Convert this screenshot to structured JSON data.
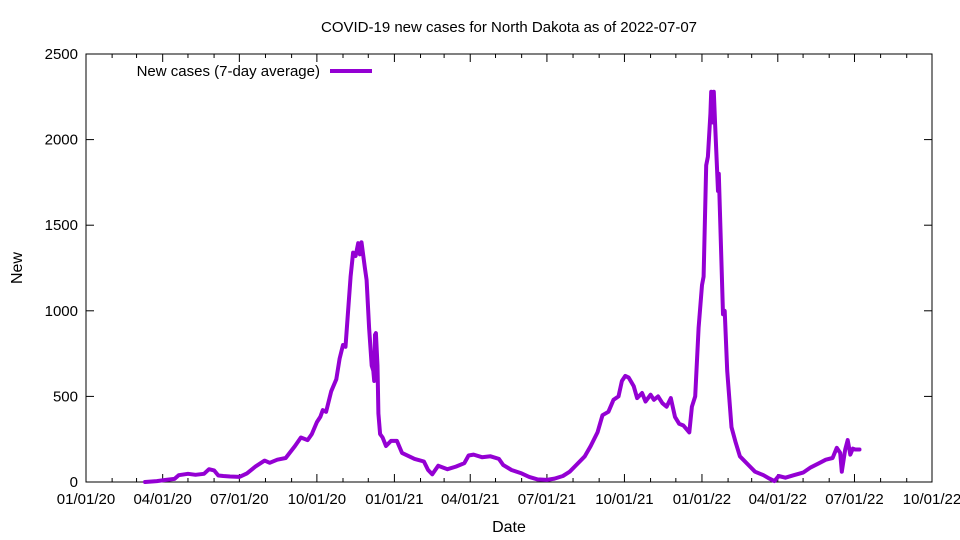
{
  "chart_data": {
    "type": "line",
    "title": "COVID-19 new cases for North Dakota as of 2022-07-07",
    "xlabel": "Date",
    "ylabel": "New",
    "xlim": [
      "2020-01-01",
      "2022-10-01"
    ],
    "ylim": [
      0,
      2500
    ],
    "x_ticks": [
      "2020-01-01",
      "2020-04-01",
      "2020-07-01",
      "2020-10-01",
      "2021-01-01",
      "2021-04-01",
      "2021-07-01",
      "2021-10-01",
      "2022-01-01",
      "2022-04-01",
      "2022-07-01",
      "2022-10-01"
    ],
    "x_tick_labels": [
      "01/01/20",
      "04/01/20",
      "07/01/20",
      "10/01/20",
      "01/01/21",
      "04/01/21",
      "07/01/21",
      "10/01/21",
      "01/01/22",
      "04/01/22",
      "07/01/22",
      "10/01/22"
    ],
    "y_ticks": [
      0,
      500,
      1000,
      1500,
      2000,
      2500
    ],
    "y_tick_labels": [
      "0",
      "500",
      "1000",
      "1500",
      "2000",
      "2500"
    ],
    "grid": false,
    "legend": "top-left",
    "color": "#9400d3",
    "series": [
      {
        "name": "New cases (7-day average)",
        "points": [
          [
            "2020-03-11",
            0
          ],
          [
            "2020-03-25",
            5
          ],
          [
            "2020-04-05",
            12
          ],
          [
            "2020-04-15",
            18
          ],
          [
            "2020-04-20",
            40
          ],
          [
            "2020-05-01",
            48
          ],
          [
            "2020-05-10",
            42
          ],
          [
            "2020-05-20",
            48
          ],
          [
            "2020-05-26",
            75
          ],
          [
            "2020-06-01",
            68
          ],
          [
            "2020-06-06",
            38
          ],
          [
            "2020-06-12",
            35
          ],
          [
            "2020-06-20",
            32
          ],
          [
            "2020-07-01",
            30
          ],
          [
            "2020-07-10",
            50
          ],
          [
            "2020-07-20",
            90
          ],
          [
            "2020-07-31",
            125
          ],
          [
            "2020-08-06",
            112
          ],
          [
            "2020-08-15",
            130
          ],
          [
            "2020-08-25",
            140
          ],
          [
            "2020-09-05",
            210
          ],
          [
            "2020-09-12",
            260
          ],
          [
            "2020-09-20",
            245
          ],
          [
            "2020-09-25",
            280
          ],
          [
            "2020-10-01",
            350
          ],
          [
            "2020-10-05",
            380
          ],
          [
            "2020-10-08",
            420
          ],
          [
            "2020-10-12",
            410
          ],
          [
            "2020-10-18",
            530
          ],
          [
            "2020-10-24",
            600
          ],
          [
            "2020-10-28",
            720
          ],
          [
            "2020-11-01",
            800
          ],
          [
            "2020-11-04",
            790
          ],
          [
            "2020-11-07",
            1000
          ],
          [
            "2020-11-10",
            1200
          ],
          [
            "2020-11-13",
            1340
          ],
          [
            "2020-11-16",
            1320
          ],
          [
            "2020-11-19",
            1395
          ],
          [
            "2020-11-21",
            1330
          ],
          [
            "2020-11-23",
            1400
          ],
          [
            "2020-11-27",
            1250
          ],
          [
            "2020-11-29",
            1180
          ],
          [
            "2020-12-02",
            900
          ],
          [
            "2020-12-05",
            680
          ],
          [
            "2020-12-07",
            650
          ],
          [
            "2020-12-08",
            590
          ],
          [
            "2020-12-09",
            860
          ],
          [
            "2020-12-10",
            870
          ],
          [
            "2020-12-12",
            680
          ],
          [
            "2020-12-13",
            400
          ],
          [
            "2020-12-15",
            280
          ],
          [
            "2020-12-18",
            260
          ],
          [
            "2020-12-22",
            210
          ],
          [
            "2020-12-28",
            240
          ],
          [
            "2021-01-04",
            240
          ],
          [
            "2021-01-10",
            170
          ],
          [
            "2021-01-25",
            135
          ],
          [
            "2021-02-05",
            120
          ],
          [
            "2021-02-10",
            70
          ],
          [
            "2021-02-15",
            45
          ],
          [
            "2021-02-22",
            95
          ],
          [
            "2021-03-05",
            75
          ],
          [
            "2021-03-15",
            90
          ],
          [
            "2021-03-25",
            110
          ],
          [
            "2021-03-30",
            155
          ],
          [
            "2021-04-05",
            160
          ],
          [
            "2021-04-15",
            145
          ],
          [
            "2021-04-25",
            150
          ],
          [
            "2021-05-05",
            135
          ],
          [
            "2021-05-10",
            100
          ],
          [
            "2021-05-20",
            70
          ],
          [
            "2021-06-01",
            50
          ],
          [
            "2021-06-10",
            30
          ],
          [
            "2021-06-20",
            15
          ],
          [
            "2021-07-01",
            12
          ],
          [
            "2021-07-10",
            20
          ],
          [
            "2021-07-20",
            35
          ],
          [
            "2021-07-28",
            60
          ],
          [
            "2021-08-05",
            100
          ],
          [
            "2021-08-15",
            150
          ],
          [
            "2021-08-22",
            210
          ],
          [
            "2021-08-30",
            290
          ],
          [
            "2021-09-05",
            390
          ],
          [
            "2021-09-12",
            410
          ],
          [
            "2021-09-18",
            480
          ],
          [
            "2021-09-24",
            500
          ],
          [
            "2021-09-28",
            590
          ],
          [
            "2021-10-02",
            620
          ],
          [
            "2021-10-06",
            610
          ],
          [
            "2021-10-12",
            560
          ],
          [
            "2021-10-16",
            490
          ],
          [
            "2021-10-22",
            520
          ],
          [
            "2021-10-26",
            470
          ],
          [
            "2021-11-01",
            510
          ],
          [
            "2021-11-05",
            480
          ],
          [
            "2021-11-10",
            500
          ],
          [
            "2021-11-15",
            460
          ],
          [
            "2021-11-20",
            440
          ],
          [
            "2021-11-25",
            490
          ],
          [
            "2021-11-30",
            380
          ],
          [
            "2021-12-05",
            340
          ],
          [
            "2021-12-10",
            330
          ],
          [
            "2021-12-17",
            290
          ],
          [
            "2021-12-20",
            440
          ],
          [
            "2021-12-24",
            500
          ],
          [
            "2021-12-28",
            900
          ],
          [
            "2022-01-01",
            1150
          ],
          [
            "2022-01-03",
            1200
          ],
          [
            "2022-01-06",
            1850
          ],
          [
            "2022-01-08",
            1900
          ],
          [
            "2022-01-11",
            2150
          ],
          [
            "2022-01-12",
            2280
          ],
          [
            "2022-01-14",
            2100
          ],
          [
            "2022-01-15",
            2280
          ],
          [
            "2022-01-17",
            2050
          ],
          [
            "2022-01-20",
            1700
          ],
          [
            "2022-01-21",
            1800
          ],
          [
            "2022-01-26",
            980
          ],
          [
            "2022-01-28",
            1000
          ],
          [
            "2022-01-31",
            650
          ],
          [
            "2022-02-05",
            320
          ],
          [
            "2022-02-10",
            230
          ],
          [
            "2022-02-15",
            150
          ],
          [
            "2022-02-25",
            100
          ],
          [
            "2022-03-05",
            60
          ],
          [
            "2022-03-15",
            40
          ],
          [
            "2022-03-22",
            20
          ],
          [
            "2022-03-28",
            5
          ],
          [
            "2022-04-02",
            35
          ],
          [
            "2022-04-10",
            25
          ],
          [
            "2022-04-20",
            40
          ],
          [
            "2022-05-01",
            55
          ],
          [
            "2022-05-10",
            85
          ],
          [
            "2022-05-20",
            110
          ],
          [
            "2022-05-28",
            130
          ],
          [
            "2022-06-05",
            140
          ],
          [
            "2022-06-10",
            200
          ],
          [
            "2022-06-14",
            170
          ],
          [
            "2022-06-16",
            60
          ],
          [
            "2022-06-20",
            190
          ],
          [
            "2022-06-23",
            245
          ],
          [
            "2022-06-26",
            160
          ],
          [
            "2022-06-29",
            195
          ],
          [
            "2022-07-02",
            190
          ],
          [
            "2022-07-07",
            190
          ]
        ]
      }
    ]
  }
}
